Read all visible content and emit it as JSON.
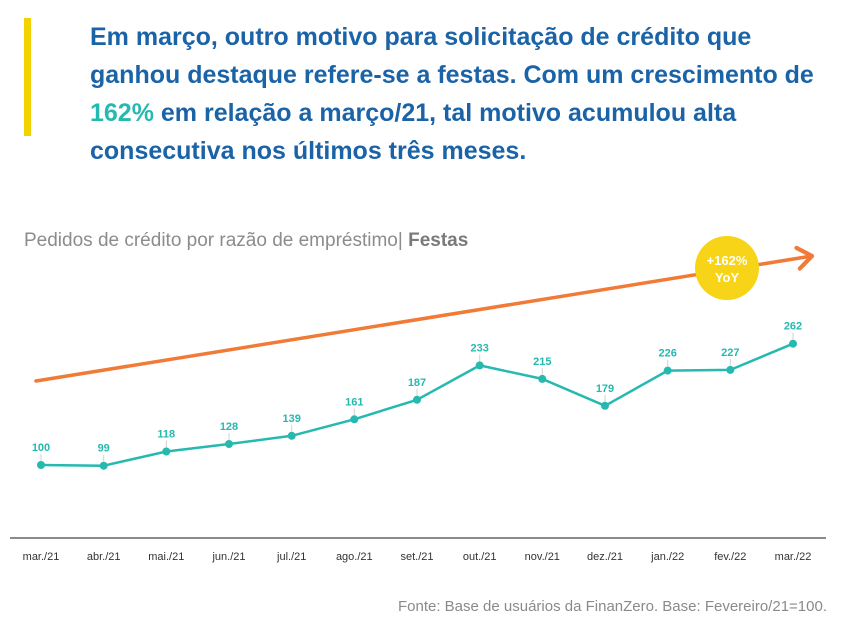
{
  "headline": {
    "before": "Em março, outro motivo para solicitação de crédito que ganhou destaque refere-se a festas. Com um crescimento de ",
    "highlight": "162%",
    "after": " em relação a março/21, tal motivo acumulou alta consecutiva nos últimos três meses."
  },
  "chart_title": {
    "main": "Pedidos de crédito por razão de empréstimo| ",
    "emphasis": "Festas"
  },
  "badge": {
    "line1": "+162%",
    "line2": "YoY"
  },
  "source": "Fonte: Base de usuários da FinanZero. Base: Fevereiro/21=100.",
  "colors": {
    "headline": "#1b63a7",
    "highlight": "#25b9b0",
    "series": "#25b9b0",
    "trend_arrow": "#f07a36",
    "badge": "#f7d417",
    "accent_bar": "#f2d200"
  },
  "chart_data": {
    "type": "line",
    "categories": [
      "mar./21",
      "abr./21",
      "mai./21",
      "jun./21",
      "jul./21",
      "ago./21",
      "set./21",
      "out./21",
      "nov./21",
      "dez./21",
      "jan./22",
      "fev./22",
      "mar./22"
    ],
    "series": [
      {
        "values": [
          100,
          99,
          118,
          128,
          139,
          161,
          187,
          233,
          215,
          179,
          226,
          227,
          262
        ]
      }
    ],
    "title": "Pedidos de crédito por razão de empréstimo| Festas",
    "xlabel": "",
    "ylabel": "",
    "grid": false,
    "legend": "none",
    "annotation": "+162% YoY"
  }
}
